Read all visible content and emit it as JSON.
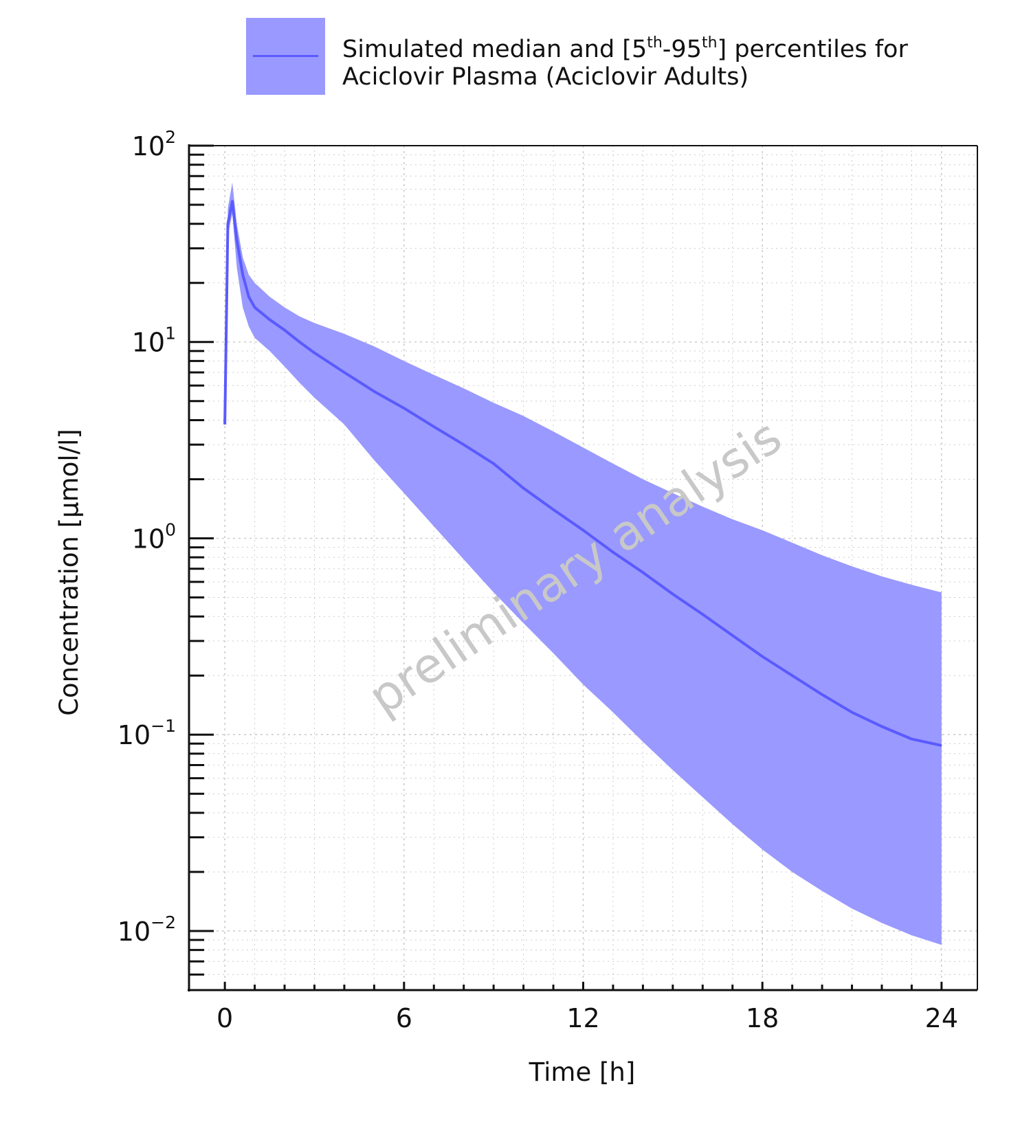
{
  "legend": {
    "line1_pre": "Simulated median and [5",
    "sup1": "th",
    "line1_mid": "-95",
    "sup2": "th",
    "line1_post": "] percentiles for",
    "line2": "Aciclovir Plasma (Aciclovir Adults)"
  },
  "watermark": "preliminary analysis",
  "chart_data": {
    "type": "area",
    "xlabel": "Time [h]",
    "ylabel": "Concentration [µmol/l]",
    "xlim": [
      -1.2,
      25.2
    ],
    "ylim": [
      0.005,
      100
    ],
    "yscale": "log",
    "xticks": [
      0,
      6,
      12,
      18,
      24
    ],
    "xtick_labels": [
      "0",
      "6",
      "12",
      "18",
      "24"
    ],
    "yticks": [
      0.01,
      0.1,
      1,
      10,
      100
    ],
    "ytick_labels": [
      {
        "base": "10",
        "exp": "−2"
      },
      {
        "base": "10",
        "exp": "−1"
      },
      {
        "base": "10",
        "exp": "0"
      },
      {
        "base": "10",
        "exp": "1"
      },
      {
        "base": "10",
        "exp": "2"
      }
    ],
    "grid": true,
    "legend_position": "top",
    "colors": {
      "band": "#9999ff",
      "median": "#5a5aff",
      "watermark": "#c8c8c8",
      "grid": "#cccccc"
    },
    "series": [
      {
        "name": "Simulated median and [5th-95th] percentiles for Aciclovir Plasma (Aciclovir Adults)",
        "x": [
          0,
          0.1,
          0.25,
          0.4,
          0.6,
          0.8,
          1,
          1.5,
          2,
          2.5,
          3,
          4,
          5,
          6,
          7,
          8,
          9,
          10,
          11,
          12,
          13,
          14,
          15,
          16,
          17,
          18,
          19,
          20,
          21,
          22,
          23,
          24
        ],
        "median": [
          3.8,
          40,
          52,
          33,
          22,
          17,
          15,
          13,
          11.5,
          10,
          8.8,
          7,
          5.6,
          4.6,
          3.7,
          3.0,
          2.4,
          1.8,
          1.4,
          1.1,
          0.85,
          0.67,
          0.52,
          0.41,
          0.32,
          0.25,
          0.2,
          0.16,
          0.13,
          0.11,
          0.095,
          0.088
        ],
        "lower_5th": [
          3.8,
          35,
          45,
          24,
          15,
          12,
          10.5,
          9,
          7.5,
          6.2,
          5.2,
          3.8,
          2.5,
          1.7,
          1.15,
          0.78,
          0.53,
          0.37,
          0.26,
          0.18,
          0.13,
          0.092,
          0.066,
          0.048,
          0.035,
          0.026,
          0.02,
          0.016,
          0.013,
          0.011,
          0.0095,
          0.0085
        ],
        "upper_95th": [
          3.8,
          48,
          65,
          40,
          27,
          22,
          20,
          17,
          15,
          13.5,
          12.5,
          11,
          9.5,
          8,
          6.8,
          5.8,
          4.9,
          4.2,
          3.5,
          2.9,
          2.4,
          2.0,
          1.7,
          1.45,
          1.25,
          1.1,
          0.95,
          0.82,
          0.72,
          0.64,
          0.58,
          0.53
        ]
      }
    ]
  }
}
